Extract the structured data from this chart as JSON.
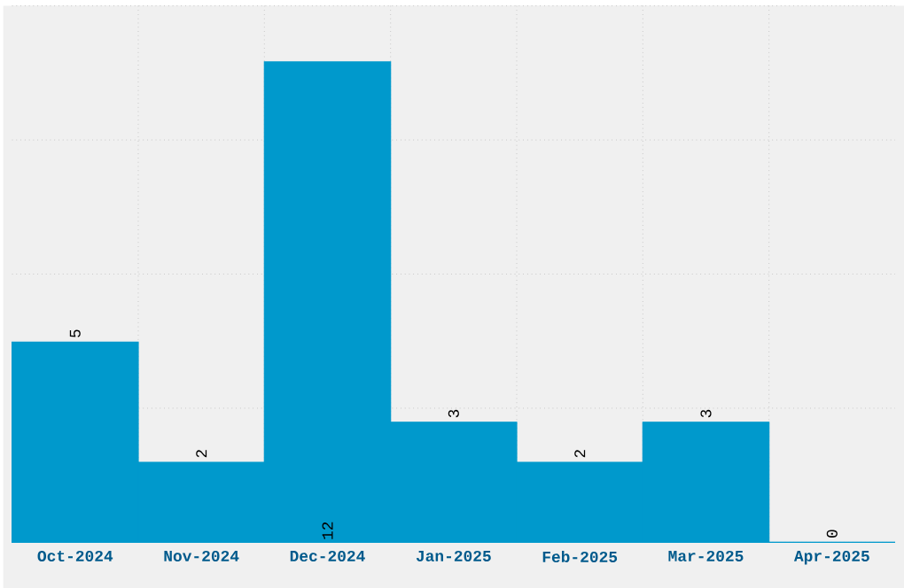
{
  "chart_data": {
    "type": "bar",
    "categories": [
      "Oct-2024",
      "Nov-2024",
      "Dec-2024",
      "Jan-2025",
      "Feb-2025",
      "Mar-2025",
      "Apr-2025"
    ],
    "values": [
      5,
      2,
      12,
      3,
      2,
      3,
      0
    ],
    "color": "#0099cc",
    "ylim": [
      0,
      13.4
    ],
    "yticks": [
      {
        "value": 0,
        "label": null
      },
      {
        "value": 3.35,
        "label": null
      },
      {
        "value": 6.7,
        "label": null
      },
      {
        "value": 10.05,
        "label": null
      },
      {
        "value": 13.4,
        "label": null
      }
    ],
    "grid": true,
    "data_labels": true,
    "tick_labels": "x"
  }
}
